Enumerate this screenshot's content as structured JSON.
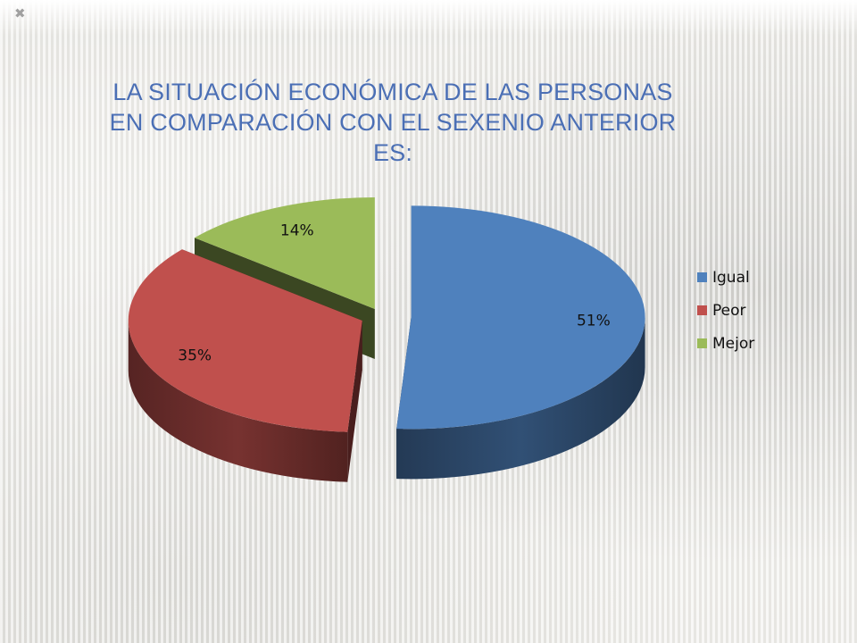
{
  "chart_data": {
    "type": "pie",
    "title": "LA SITUACIÓN ECONÓMICA DE LAS PERSONAS EN COMPARACIÓN CON EL SEXENIO ANTERIOR ES:",
    "categories": [
      "Igual",
      "Peor",
      "Mejor"
    ],
    "values": [
      51,
      35,
      14
    ],
    "data_labels": [
      "51%",
      "35%",
      "14%"
    ],
    "colors": [
      "#4f81bd",
      "#c0504d",
      "#9bbb59"
    ],
    "style": "3d-exploded",
    "legend_position": "right"
  },
  "decor": {
    "corner_mark": "✖"
  }
}
